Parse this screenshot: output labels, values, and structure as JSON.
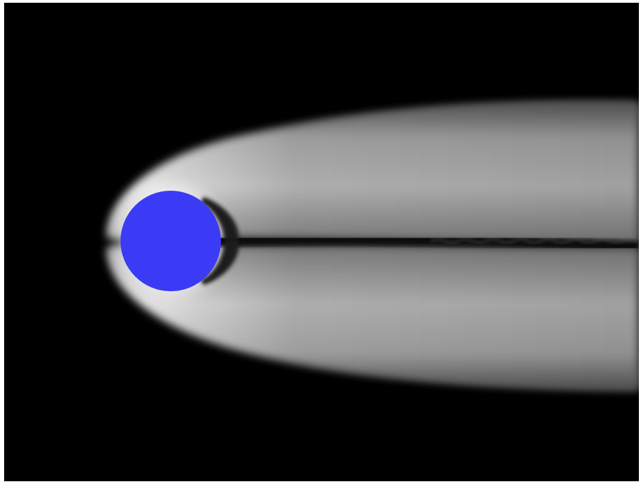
{
  "scene": {
    "background_color": "#000000",
    "frame_border_color": "#ffffff",
    "obstacle": {
      "shape": "circle",
      "color": "#3b3bf5",
      "icon": "cylinder-obstacle"
    },
    "flow_field": {
      "colormap": "grayscale",
      "wake_direction": "left-to-right",
      "max_intensity_color": "#ffffff",
      "min_intensity_color": "#000000"
    }
  }
}
